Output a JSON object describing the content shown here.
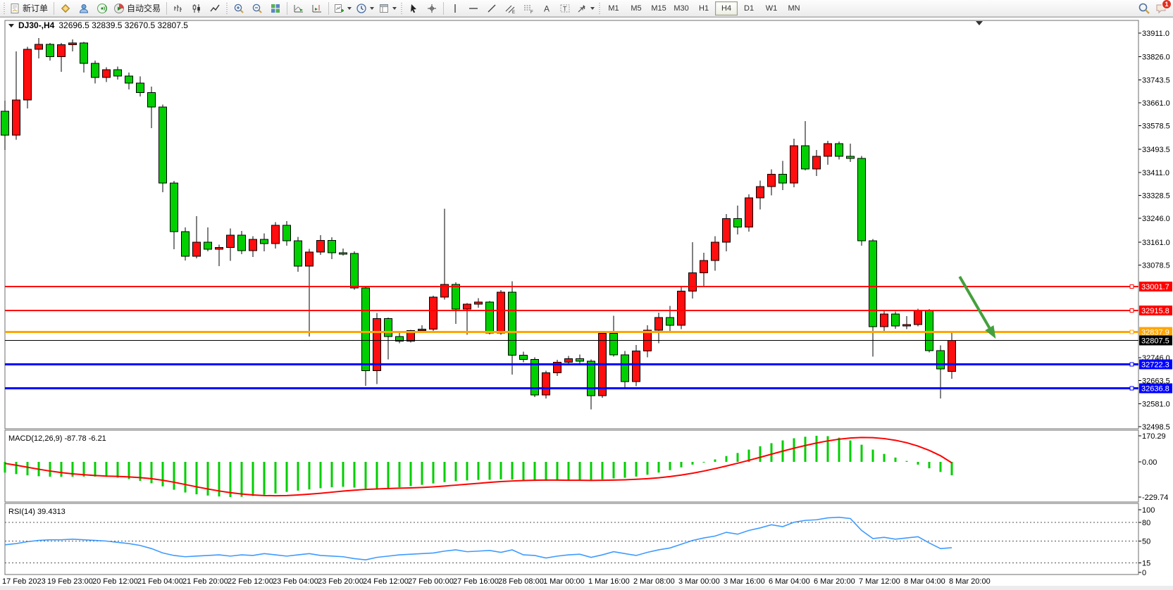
{
  "toolbar": {
    "groups": [
      {
        "items": [
          {
            "icon": "new-order-icon",
            "label": "新订单"
          }
        ]
      },
      {
        "items": [
          {
            "icon": "gold-cube-icon"
          },
          {
            "icon": "community-icon"
          },
          {
            "icon": "signals-icon"
          },
          {
            "icon": "autotrading-icon",
            "label": "自动交易"
          }
        ]
      },
      {
        "items": [
          {
            "icon": "bar-chart-icon"
          },
          {
            "icon": "candlestick-chart-icon"
          },
          {
            "icon": "line-chart-icon"
          }
        ]
      },
      {
        "items": [
          {
            "icon": "zoom-in-icon"
          },
          {
            "icon": "zoom-out-icon"
          },
          {
            "icon": "tile-windows-icon"
          }
        ]
      },
      {
        "items": [
          {
            "icon": "auto-scroll-icon"
          },
          {
            "icon": "chart-shift-icon"
          }
        ]
      },
      {
        "items": [
          {
            "icon": "new-chart-icon",
            "dropdown": true
          },
          {
            "icon": "profiles-icon",
            "dropdown": true
          },
          {
            "icon": "templates-icon",
            "dropdown": true
          }
        ]
      },
      {
        "items": [
          {
            "icon": "cursor-icon"
          },
          {
            "icon": "crosshair-icon"
          }
        ]
      },
      {
        "items": [
          {
            "icon": "vertical-line-icon"
          },
          {
            "icon": "horizontal-line-icon"
          },
          {
            "icon": "trendline-icon"
          },
          {
            "icon": "channel-icon"
          },
          {
            "icon": "fibonacci-icon"
          },
          {
            "icon": "text-icon"
          },
          {
            "icon": "label-icon"
          },
          {
            "icon": "arrows-icon",
            "dropdown": true
          }
        ]
      }
    ],
    "timeframes": [
      "M1",
      "M5",
      "M15",
      "M30",
      "H1",
      "H4",
      "D1",
      "W1",
      "MN"
    ],
    "active_timeframe": "H4",
    "right": {
      "search_icon": "search-icon",
      "chat_icon": "chat-icon",
      "chat_badge": "1"
    }
  },
  "chart": {
    "symbol_period": "DJ30-,H4",
    "ohlc_text": "32696.5 32839.5 32670.5 32807.5"
  },
  "chart_data": {
    "type": "candlestick",
    "symbol": "DJ30-",
    "timeframe": "H4",
    "up_color": "#fe0e0e",
    "down_color": "#00cf00",
    "time_labels": [
      "17 Feb 2023",
      "19 Feb 23:00",
      "20 Feb 12:00",
      "21 Feb 04:00",
      "21 Feb 20:00",
      "22 Feb 12:00",
      "23 Feb 04:00",
      "23 Feb 20:00",
      "24 Feb 12:00",
      "27 Feb 00:00",
      "27 Feb 16:00",
      "28 Feb 08:00",
      "1 Mar 00:00",
      "1 Mar 16:00",
      "2 Mar 08:00",
      "3 Mar 00:00",
      "3 Mar 16:00",
      "6 Mar 04:00",
      "6 Mar 20:00",
      "7 Mar 12:00",
      "8 Mar 04:00",
      "8 Mar 20:00"
    ],
    "bars_per_label": 4,
    "price_axis_ticks": [
      33911.0,
      33826.0,
      33743.5,
      33661.0,
      33578.5,
      33493.5,
      33411.0,
      33328.5,
      33246.0,
      33161.0,
      33078.5,
      32746.0,
      32663.5,
      32581.0,
      32498.5
    ],
    "price_range": [
      32498.5,
      33911.0
    ],
    "grid": false,
    "ohlc": [
      [
        33630,
        33668,
        33492,
        33545
      ],
      [
        33545,
        33845,
        33528,
        33671
      ],
      [
        33671,
        33862,
        33640,
        33853
      ],
      [
        33853,
        33893,
        33820,
        33871
      ],
      [
        33871,
        33876,
        33812,
        33826
      ],
      [
        33826,
        33875,
        33772,
        33869
      ],
      [
        33869,
        33888,
        33845,
        33876
      ],
      [
        33876,
        33880,
        33770,
        33802
      ],
      [
        33802,
        33812,
        33730,
        33752
      ],
      [
        33752,
        33788,
        33735,
        33780
      ],
      [
        33780,
        33791,
        33744,
        33757
      ],
      [
        33757,
        33770,
        33709,
        33732
      ],
      [
        33732,
        33755,
        33684,
        33697
      ],
      [
        33697,
        33719,
        33570,
        33646
      ],
      [
        33646,
        33655,
        33340,
        33373
      ],
      [
        33373,
        33380,
        33135,
        33198
      ],
      [
        33198,
        33213,
        33095,
        33110
      ],
      [
        33110,
        33254,
        33103,
        33160
      ],
      [
        33160,
        33213,
        33128,
        33135
      ],
      [
        33135,
        33152,
        33075,
        33141
      ],
      [
        33141,
        33210,
        33094,
        33186
      ],
      [
        33186,
        33201,
        33118,
        33130
      ],
      [
        33130,
        33182,
        33108,
        33171
      ],
      [
        33171,
        33192,
        33128,
        33155
      ],
      [
        33155,
        33232,
        33138,
        33221
      ],
      [
        33221,
        33236,
        33148,
        33165
      ],
      [
        33165,
        33180,
        33055,
        33075
      ],
      [
        33075,
        33136,
        32822,
        33125
      ],
      [
        33125,
        33186,
        33115,
        33167
      ],
      [
        33167,
        33178,
        33100,
        33122
      ],
      [
        33122,
        33138,
        33112,
        33120
      ],
      [
        33120,
        33128,
        32990,
        32996
      ],
      [
        32996,
        33000,
        32645,
        32700
      ],
      [
        32700,
        32906,
        32652,
        32886
      ],
      [
        32886,
        32890,
        32740,
        32822
      ],
      [
        32822,
        32838,
        32798,
        32806
      ],
      [
        32806,
        32846,
        32800,
        32843
      ],
      [
        32843,
        32862,
        32836,
        32849
      ],
      [
        32849,
        32968,
        32840,
        32963
      ],
      [
        32963,
        33280,
        32955,
        33009
      ],
      [
        33009,
        33016,
        32868,
        32920
      ],
      [
        32920,
        32942,
        32828,
        32938
      ],
      [
        32938,
        32960,
        32925,
        32946
      ],
      [
        32946,
        32950,
        32830,
        32835
      ],
      [
        32835,
        32989,
        32828,
        32981
      ],
      [
        32981,
        33020,
        32686,
        32755
      ],
      [
        32755,
        32768,
        32730,
        32740
      ],
      [
        32740,
        32748,
        32605,
        32612
      ],
      [
        32612,
        32700,
        32600,
        32692
      ],
      [
        32692,
        32738,
        32680,
        32730
      ],
      [
        32730,
        32752,
        32722,
        32742
      ],
      [
        32742,
        32758,
        32726,
        32734
      ],
      [
        32734,
        32740,
        32560,
        32610
      ],
      [
        32610,
        32840,
        32602,
        32833
      ],
      [
        32833,
        32896,
        32750,
        32756
      ],
      [
        32756,
        32770,
        32638,
        32660
      ],
      [
        32660,
        32792,
        32644,
        32770
      ],
      [
        32770,
        32862,
        32748,
        32845
      ],
      [
        32845,
        32908,
        32798,
        32890
      ],
      [
        32890,
        32932,
        32838,
        32862
      ],
      [
        32862,
        33002,
        32848,
        32985
      ],
      [
        32985,
        33160,
        32958,
        33050
      ],
      [
        33050,
        33122,
        33002,
        33095
      ],
      [
        33095,
        33182,
        33058,
        33160
      ],
      [
        33160,
        33262,
        33128,
        33245
      ],
      [
        33245,
        33292,
        33188,
        33215
      ],
      [
        33215,
        33332,
        33198,
        33320
      ],
      [
        33320,
        33382,
        33278,
        33360
      ],
      [
        33360,
        33422,
        33328,
        33405
      ],
      [
        33405,
        33452,
        33348,
        33373
      ],
      [
        33373,
        33532,
        33358,
        33507
      ],
      [
        33507,
        33595,
        33418,
        33423
      ],
      [
        33423,
        33492,
        33398,
        33469
      ],
      [
        33469,
        33525,
        33438,
        33514
      ],
      [
        33514,
        33522,
        33458,
        33469
      ],
      [
        33469,
        33514,
        33448,
        33461
      ],
      [
        33461,
        33470,
        33148,
        33165
      ],
      [
        33165,
        33172,
        32750,
        32857
      ],
      [
        32857,
        32915,
        32840,
        32903
      ],
      [
        32903,
        32912,
        32850,
        32860
      ],
      [
        32860,
        32895,
        32848,
        32865
      ],
      [
        32865,
        32922,
        32858,
        32915
      ],
      [
        32915,
        32920,
        32765,
        32772
      ],
      [
        32772,
        32790,
        32600,
        32706
      ],
      [
        32696.5,
        32839.5,
        32670.5,
        32807.5
      ]
    ],
    "levels": [
      {
        "price": 33001.7,
        "color": "#ff0000",
        "width": 2
      },
      {
        "price": 32915.8,
        "color": "#ff0000",
        "width": 2
      },
      {
        "price": 32837.9,
        "color": "#ffa500",
        "width": 3
      },
      {
        "price": 32807.5,
        "color": "#000000",
        "width": 1,
        "is_current_price": true
      },
      {
        "price": 32722.3,
        "color": "#0000ff",
        "width": 3
      },
      {
        "price": 32636.8,
        "color": "#0000ff",
        "width": 3
      }
    ],
    "current_price": 32807.5,
    "annotation_arrow": {
      "from_bar": 84.7,
      "from_price": 33037,
      "to_bar": 87.9,
      "to_price": 32814,
      "color": "#44a03c"
    },
    "indicators": [
      {
        "name": "MACD(12,26,9)",
        "values_label": "-87.78 -6.21",
        "axis_labels": [
          170.29,
          0.0,
          -229.74
        ],
        "hist_color": "#00cf00",
        "signal_color": "#ff0000",
        "histogram": [
          -70,
          -80,
          -88,
          -94,
          -97,
          -98,
          -97,
          -96,
          -96,
          -98,
          -103,
          -112,
          -124,
          -140,
          -160,
          -182,
          -200,
          -212,
          -220,
          -226,
          -229.7,
          -228,
          -223,
          -215,
          -206,
          -196,
          -188,
          -180,
          -172,
          -166,
          -163,
          -168,
          -175,
          -176,
          -172,
          -166,
          -158,
          -150,
          -141,
          -132,
          -126,
          -121,
          -118,
          -117,
          -114,
          -116,
          -118,
          -122,
          -124,
          -123,
          -121,
          -119,
          -121,
          -114,
          -108,
          -104,
          -96,
          -84,
          -70,
          -54,
          -36,
          -18,
          -2,
          16,
          38,
          58,
          80,
          102,
          122,
          140,
          154,
          164,
          170.3,
          168,
          158,
          140,
          112,
          80,
          52,
          28,
          6,
          -18,
          -42,
          -66,
          -87.8
        ],
        "signal": [
          -10,
          -22,
          -35,
          -48,
          -60,
          -70,
          -78,
          -84,
          -89,
          -93,
          -95,
          -98,
          -103,
          -110,
          -120,
          -133,
          -148,
          -163,
          -177,
          -190,
          -201,
          -210,
          -216,
          -220,
          -221,
          -220,
          -216,
          -211,
          -205,
          -198,
          -191,
          -185,
          -180,
          -177,
          -174,
          -172,
          -170,
          -167,
          -163,
          -158,
          -152,
          -146,
          -140,
          -134,
          -129,
          -125,
          -122,
          -120,
          -119,
          -119,
          -120,
          -120,
          -121,
          -120,
          -119,
          -117,
          -114,
          -110,
          -104,
          -96,
          -86,
          -74,
          -60,
          -44,
          -27,
          -9,
          10,
          30,
          50,
          70,
          89,
          107,
          123,
          137,
          148,
          156,
          159,
          158,
          152,
          141,
          125,
          103,
          75,
          40,
          -6.2
        ]
      },
      {
        "name": "RSI(14)",
        "value_label": "39.4313",
        "axis_labels": [
          100,
          80,
          50,
          15,
          0
        ],
        "dashed_levels": [
          80,
          50,
          15
        ],
        "color": "#3e9bff",
        "values": [
          44,
          46,
          49,
          51,
          52,
          52,
          53,
          52,
          51,
          50,
          48,
          46,
          43,
          38,
          31,
          27,
          25,
          26,
          27,
          28,
          26,
          28,
          27,
          30,
          28,
          26,
          28,
          30,
          27,
          26,
          25,
          22,
          20,
          24,
          26,
          28,
          29,
          30,
          31,
          34,
          36,
          33,
          34,
          35,
          32,
          36,
          28,
          27,
          23,
          26,
          28,
          29,
          24,
          28,
          33,
          30,
          27,
          32,
          36,
          39,
          45,
          51,
          55,
          58,
          64,
          61,
          67,
          71,
          76,
          73,
          80,
          83,
          84,
          87,
          88,
          86,
          67,
          54,
          56,
          53,
          55,
          57,
          47,
          38,
          39.4
        ]
      }
    ]
  }
}
